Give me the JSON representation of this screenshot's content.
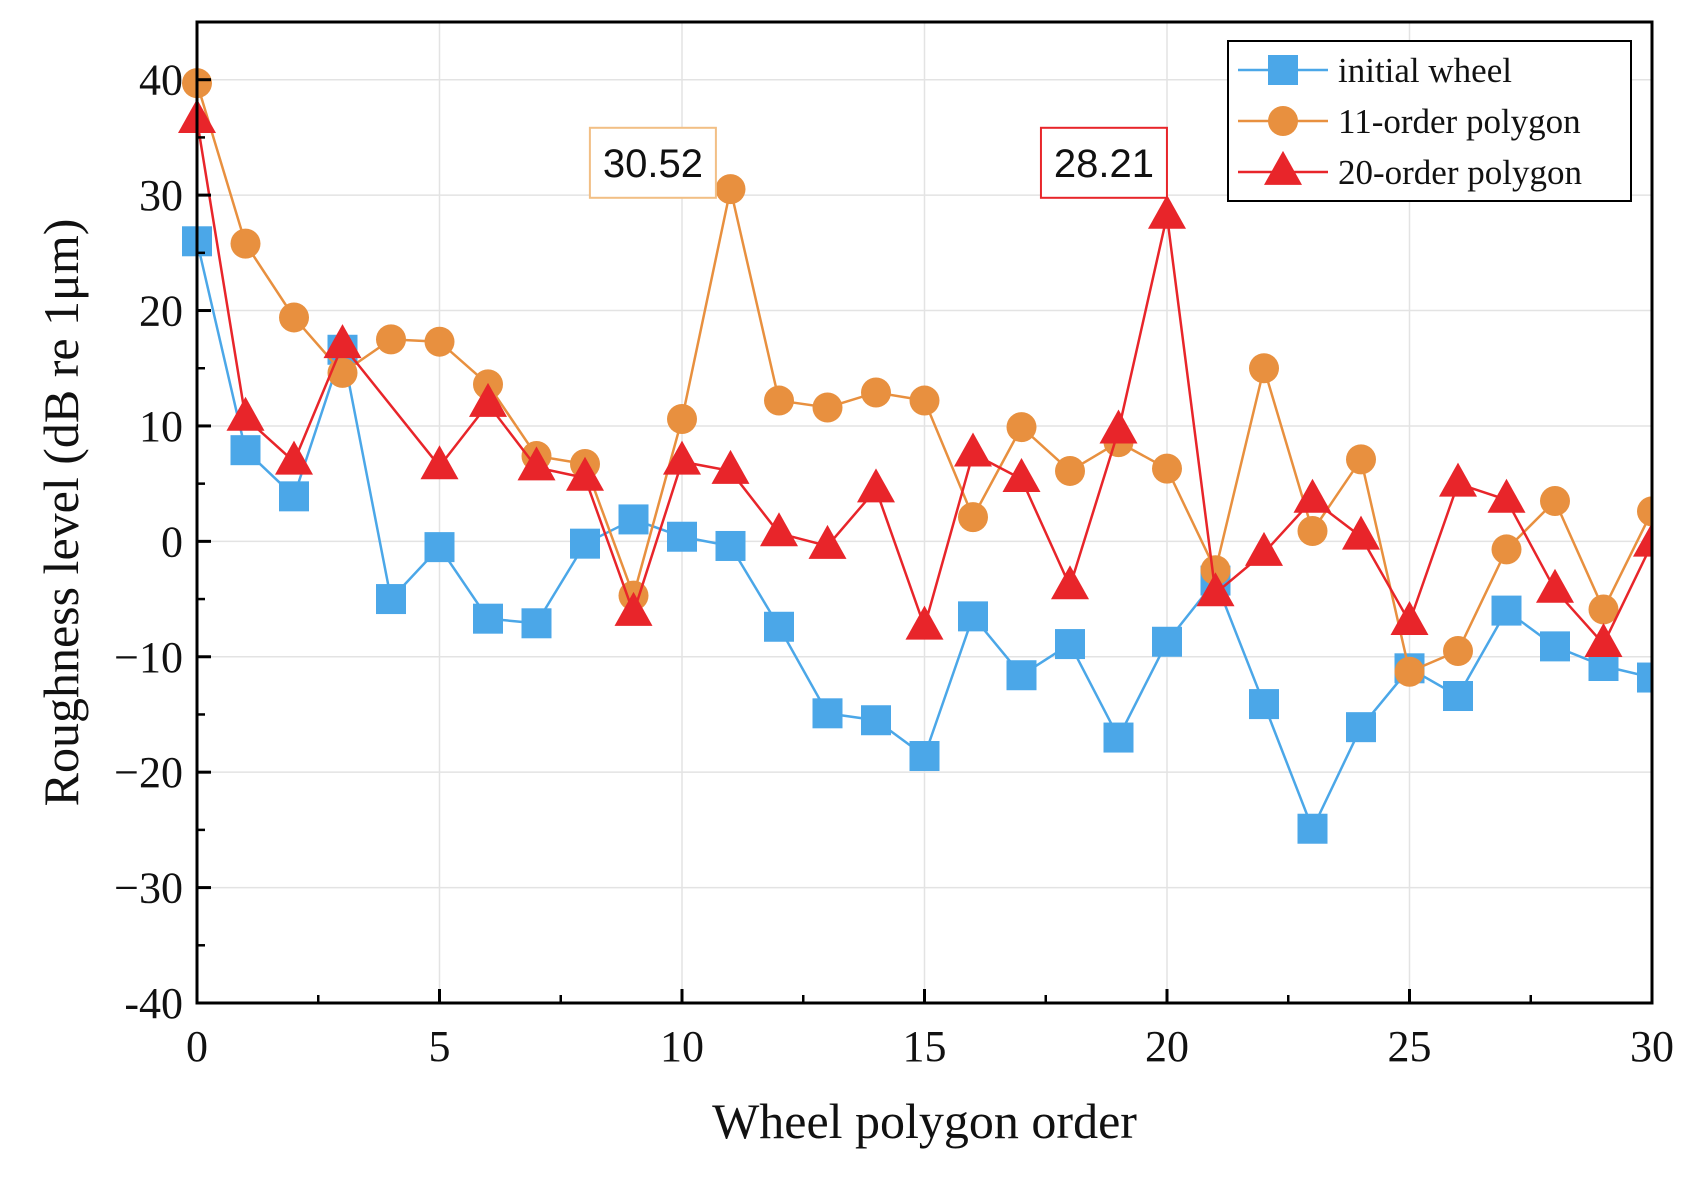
{
  "chart_data": {
    "type": "line",
    "title": "",
    "xlabel": "Wheel polygon order",
    "ylabel": "Roughness level (dB re 1μm)",
    "xlim": [
      0,
      30
    ],
    "ylim": [
      -40,
      45
    ],
    "x_ticks": [
      0,
      5,
      10,
      15,
      20,
      25,
      30
    ],
    "y_ticks": [
      -40,
      -30,
      -20,
      -10,
      0,
      10,
      20,
      30,
      40
    ],
    "x_tick_labels": [
      "0",
      "5",
      "10",
      "15",
      "20",
      "25",
      "30"
    ],
    "y_tick_labels": [
      "-40",
      "−30",
      "−20",
      "−10",
      "0",
      "10",
      "20",
      "30",
      "40"
    ],
    "grid": true,
    "legend_position": "top-right",
    "x": [
      0,
      1,
      2,
      3,
      4,
      5,
      6,
      7,
      8,
      9,
      10,
      11,
      12,
      13,
      14,
      15,
      16,
      17,
      18,
      19,
      20,
      21,
      22,
      23,
      24,
      25,
      26,
      27,
      28,
      29,
      30
    ],
    "series": [
      {
        "name": "initial wheel",
        "marker": "square",
        "color": "#4BA7E8",
        "values": [
          26.0,
          7.9,
          3.9,
          16.6,
          -5.0,
          -0.5,
          -6.7,
          -7.1,
          -0.2,
          1.9,
          0.4,
          -0.4,
          -7.4,
          -14.9,
          -15.5,
          -18.6,
          -6.5,
          -11.6,
          -8.9,
          -17.0,
          -8.7,
          -3.4,
          -14.1,
          -24.9,
          -16.1,
          -11.0,
          -13.4,
          -6.0,
          -9.1,
          -10.8,
          -11.8
        ]
      },
      {
        "name": "11-order polygon",
        "marker": "circle",
        "color": "#E8903F",
        "values": [
          39.7,
          25.8,
          19.4,
          14.6,
          17.5,
          17.3,
          13.6,
          7.4,
          6.7,
          -4.7,
          10.6,
          30.52,
          12.2,
          11.6,
          12.9,
          12.2,
          2.1,
          9.9,
          6.1,
          8.6,
          6.3,
          -2.5,
          15.0,
          0.9,
          7.1,
          -11.3,
          -9.5,
          -0.7,
          3.5,
          -5.9,
          2.6
        ]
      },
      {
        "name": "20-order polygon",
        "marker": "triangle",
        "color": "#E8252A",
        "values": [
          36.5,
          10.7,
          6.9,
          17.0,
          null,
          6.5,
          11.9,
          6.4,
          5.5,
          -6.2,
          6.9,
          6.1,
          0.7,
          -0.4,
          4.5,
          -7.4,
          7.6,
          5.4,
          -3.9,
          9.6,
          28.21,
          -4.5,
          -1.0,
          3.6,
          0.4,
          -7.0,
          5.0,
          3.6,
          -4.2,
          -8.9,
          -0.2
        ]
      }
    ],
    "annotations": [
      {
        "text": "30.52",
        "x": 9.4,
        "y": 32.8,
        "color": "#F2BF85"
      },
      {
        "text": "28.21",
        "x": 18.7,
        "y": 32.8,
        "color": "#E8252A"
      }
    ]
  }
}
